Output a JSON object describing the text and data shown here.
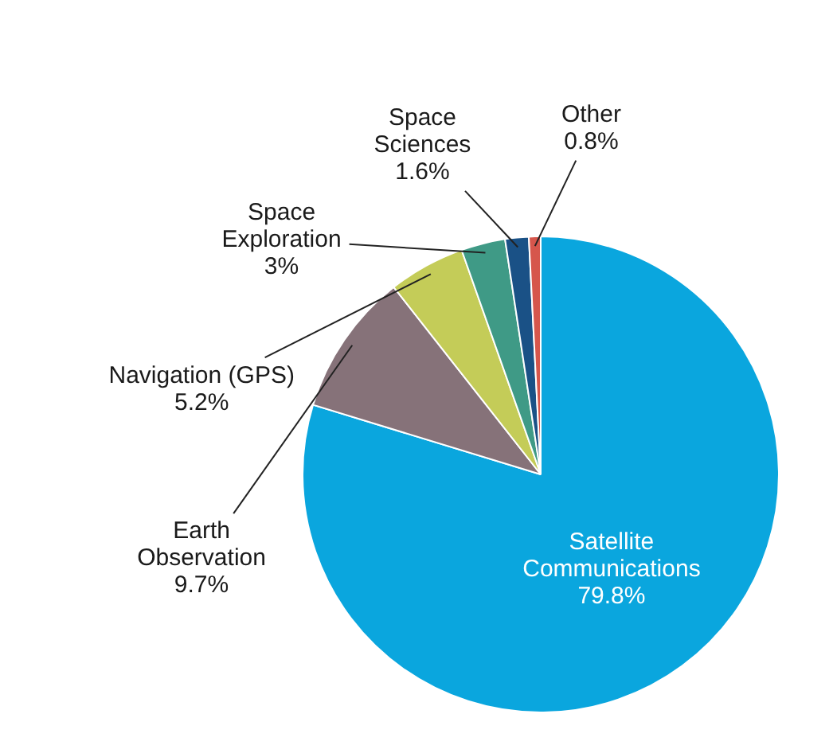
{
  "chart_data": {
    "type": "pie",
    "categories": [
      "Satellite Communications",
      "Earth Observation",
      "Navigation (GPS)",
      "Space Exploration",
      "Space Sciences",
      "Other"
    ],
    "values": [
      79.8,
      9.7,
      5.2,
      3,
      1.6,
      0.8
    ],
    "value_labels": [
      "79.8%",
      "9.7%",
      "5.2%",
      "3%",
      "1.6%",
      "0.8%"
    ],
    "colors": [
      "#0aa6de",
      "#867279",
      "#c4cc58",
      "#3f9a86",
      "#1a5186",
      "#d6564c"
    ],
    "legend": false
  }
}
